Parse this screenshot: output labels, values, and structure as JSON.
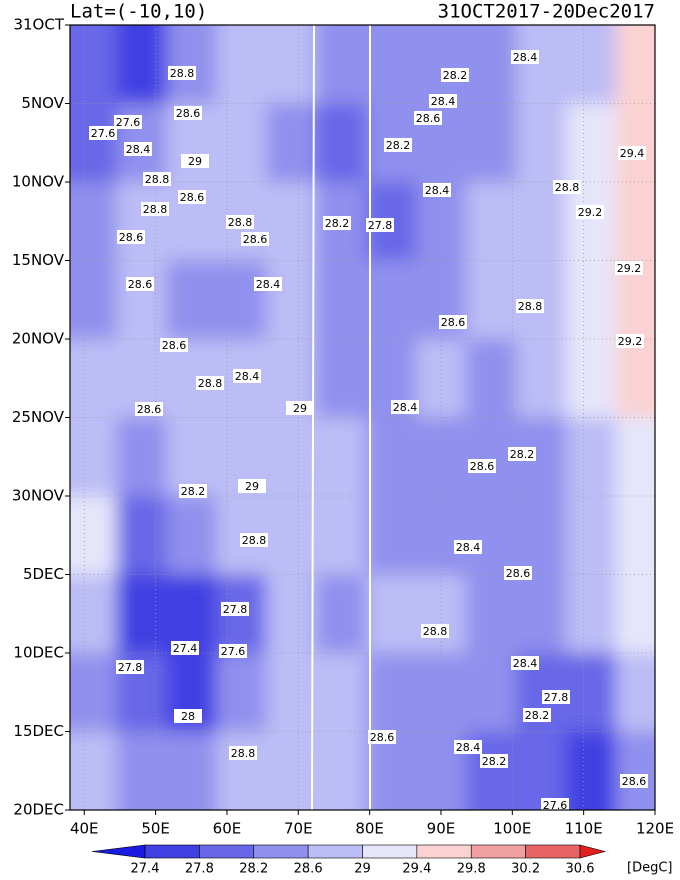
{
  "chart_data": {
    "type": "contour",
    "title_left": "Lat=(-10,10)",
    "title_right": "31OCT2017-20Dec2017",
    "x": [
      41,
      48,
      55,
      62,
      69,
      76,
      83,
      90,
      97,
      104,
      111,
      118
    ],
    "y": [
      2.5,
      7.5,
      12.5,
      17.5,
      22.5,
      27.5,
      32.5,
      37.5,
      42.5,
      47.5
    ],
    "z": [
      [
        28.0,
        27.7,
        28.5,
        28.9,
        28.7,
        28.3,
        28.4,
        28.5,
        28.5,
        28.6,
        28.9,
        29.5
      ],
      [
        27.9,
        28.3,
        28.6,
        28.8,
        28.5,
        28.0,
        28.2,
        28.5,
        28.5,
        28.7,
        29.0,
        29.5
      ],
      [
        28.4,
        28.7,
        28.7,
        28.7,
        28.6,
        28.3,
        27.9,
        28.4,
        28.6,
        28.7,
        29.1,
        29.4
      ],
      [
        28.5,
        28.6,
        28.4,
        28.4,
        28.6,
        28.4,
        28.3,
        28.5,
        28.7,
        28.8,
        29.0,
        29.5
      ],
      [
        28.6,
        28.6,
        28.8,
        28.8,
        28.7,
        28.5,
        28.4,
        28.6,
        28.5,
        28.6,
        29.1,
        29.4
      ],
      [
        28.6,
        28.4,
        28.7,
        28.9,
        28.7,
        28.6,
        28.4,
        28.5,
        28.3,
        28.5,
        28.9,
        29.3
      ],
      [
        29.3,
        28.0,
        28.2,
        28.7,
        28.8,
        28.6,
        28.5,
        28.4,
        28.4,
        28.4,
        28.7,
        29.2
      ],
      [
        28.6,
        27.5,
        27.4,
        28.0,
        28.6,
        28.5,
        28.6,
        28.6,
        28.3,
        28.3,
        28.6,
        29.0
      ],
      [
        28.5,
        27.8,
        27.6,
        28.3,
        28.6,
        28.6,
        28.5,
        28.5,
        28.2,
        28.0,
        28.0,
        28.8
      ],
      [
        28.9,
        28.3,
        28.4,
        28.6,
        28.8,
        28.6,
        28.5,
        28.3,
        28.0,
        27.8,
        27.7,
        28.5
      ]
    ],
    "xlim": [
      38,
      120
    ],
    "ylim": [
      0,
      50
    ],
    "xticks": [
      {
        "value": 40,
        "label": "40E"
      },
      {
        "value": 50,
        "label": "50E"
      },
      {
        "value": 60,
        "label": "60E"
      },
      {
        "value": 70,
        "label": "70E"
      },
      {
        "value": 80,
        "label": "80E"
      },
      {
        "value": 90,
        "label": "90E"
      },
      {
        "value": 100,
        "label": "100E"
      },
      {
        "value": 110,
        "label": "110E"
      },
      {
        "value": 120,
        "label": "120E"
      }
    ],
    "yticks": [
      {
        "value": 0,
        "label": "31OCT"
      },
      {
        "value": 5,
        "label": "5NOV"
      },
      {
        "value": 10,
        "label": "10NOV"
      },
      {
        "value": 15,
        "label": "15NOV"
      },
      {
        "value": 20,
        "label": "20NOV"
      },
      {
        "value": 25,
        "label": "25NOV"
      },
      {
        "value": 30,
        "label": "30NOV"
      },
      {
        "value": 35,
        "label": "5DEC"
      },
      {
        "value": 40,
        "label": "10DEC"
      },
      {
        "value": 45,
        "label": "15DEC"
      },
      {
        "value": 50,
        "label": "20DEC"
      }
    ],
    "grid": true,
    "levels": [
      27.4,
      27.8,
      28.2,
      28.6,
      29,
      29.4,
      29.8,
      30.2,
      30.6
    ],
    "colors": [
      "#1a1ae0",
      "#3f3fe2",
      "#6767e8",
      "#9090ee",
      "#bcbcf6",
      "#e6e6fb",
      "#fad2d2",
      "#f0a0a0",
      "#e86464",
      "#e02020"
    ],
    "unit": "[DegC]",
    "contour_labels": [
      28.8,
      28.6,
      27.6,
      27.6,
      28.4,
      29,
      28.8,
      28.6,
      28.8,
      28.8,
      28.6,
      28.6,
      28.4,
      28.6,
      28.6,
      28.4,
      28.8,
      28.6,
      29,
      28.2,
      29,
      28.8,
      27.8,
      27.4,
      27.6,
      27.8,
      28,
      28.8,
      28.4,
      28.2,
      28.4,
      28.6,
      28.2,
      28.4,
      27.8,
      28.2,
      28.8,
      29.2,
      29.2,
      28.6,
      28.8,
      29.2,
      28.4,
      28.2,
      28.6,
      28.4,
      28.6,
      28.8,
      28.4,
      28.2,
      27.8,
      28.4,
      28.2,
      27.6,
      28.6,
      28.6,
      29.4
    ]
  }
}
